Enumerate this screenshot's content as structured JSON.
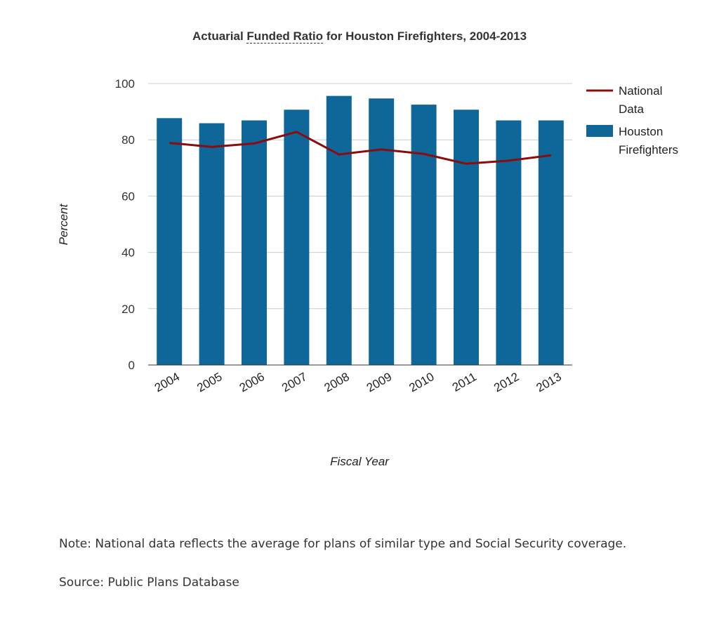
{
  "chart_data": {
    "type": "bar",
    "title_parts": [
      "Actuarial ",
      "Funded Ratio",
      " for Houston Firefighters, 2004-2013"
    ],
    "xlabel": "Fiscal Year",
    "ylabel": "Percent",
    "ylim": [
      0,
      100
    ],
    "yticks": [
      0,
      20,
      40,
      60,
      80,
      100
    ],
    "grid": true,
    "legend": "right",
    "categories": [
      "2004",
      "2005",
      "2006",
      "2007",
      "2008",
      "2009",
      "2010",
      "2011",
      "2012",
      "2013"
    ],
    "series": [
      {
        "name": "National Data",
        "kind": "line",
        "color": "#8b0c0c",
        "values": [
          78.9,
          77.5,
          78.7,
          82.8,
          74.8,
          76.6,
          75.0,
          71.5,
          72.6,
          74.5
        ]
      },
      {
        "name": "Houston Firefighters",
        "kind": "bar",
        "color": "#0f6699",
        "values": [
          87.7,
          85.9,
          86.9,
          90.7,
          95.6,
          94.7,
          92.5,
          90.7,
          86.9,
          86.9
        ]
      }
    ],
    "legend_labels": [
      [
        "National",
        "Data"
      ],
      [
        "Houston",
        "Firefighters"
      ]
    ]
  },
  "notes": {
    "note": "Note: National data reflects the average for plans of similar type and Social Security coverage.",
    "source": "Source: Public Plans Database"
  }
}
